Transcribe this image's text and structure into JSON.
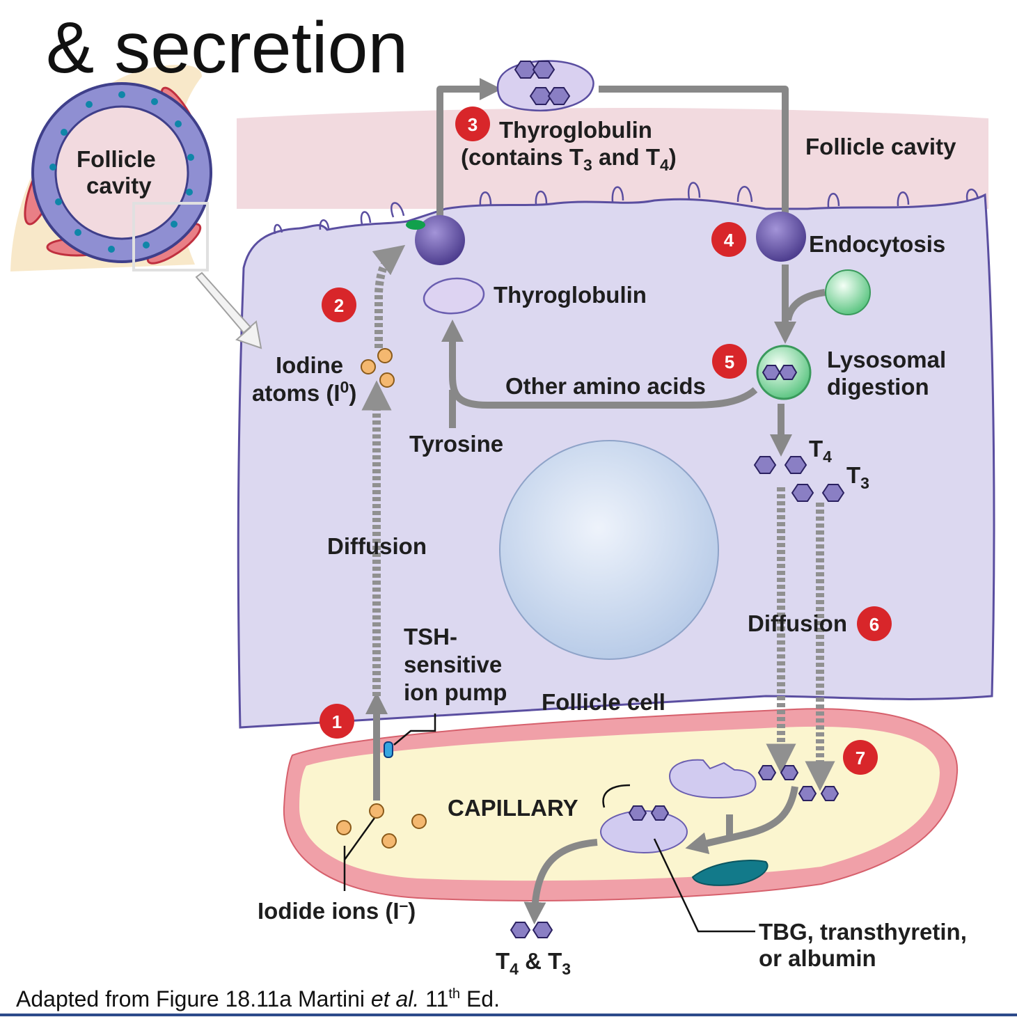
{
  "title": "& secretion",
  "caption": {
    "prefix": "Adapted from Figure 18.11a Martini ",
    "italic": "et al.",
    "mid": " 11",
    "sup": "th",
    "suffix": " Ed."
  },
  "inset": {
    "label_line1": "Follicle",
    "label_line2": "cavity"
  },
  "labels": {
    "follicle_cavity": "Follicle cavity",
    "thyroglobulin_top": "Thyroglobulin",
    "contains_pre": "(contains T",
    "contains_sub1": "3",
    "contains_mid": " and T",
    "contains_sub2": "4",
    "contains_post": ")",
    "endocytosis": "Endocytosis",
    "thyroglobulin_mid": "Thyroglobulin",
    "iodine_line1": "Iodine",
    "iodine_line2_pre": "atoms (I",
    "iodine_sup": "0",
    "iodine_line2_post": ")",
    "lysosomal_line1": "Lysosomal",
    "lysosomal_line2": "digestion",
    "other_amino_acids": "Other amino acids",
    "tyrosine": "Tyrosine",
    "t4": "T",
    "t4_sub": "4",
    "t3": "T",
    "t3_sub": "3",
    "diffusion_left": "Diffusion",
    "diffusion_right": "Diffusion",
    "tsh_line1": "TSH-",
    "tsh_line2": "sensitive",
    "tsh_line3": "ion pump",
    "follicle_cell": "Follicle cell",
    "capillary": "CAPILLARY",
    "iodide_pre": "Iodide ions (I",
    "iodide_sup": "–",
    "iodide_post": ")",
    "t4t3_pre": "T",
    "t4t3_sub1": "4",
    "t4t3_mid": " & T",
    "t4t3_sub2": "3",
    "tbg_line1": "TBG, transthyretin,",
    "tbg_line2": "or albumin"
  },
  "steps": [
    "1",
    "2",
    "3",
    "4",
    "5",
    "6",
    "7"
  ],
  "colors": {
    "cell_fill": "#dcd8f0",
    "cavity_fill": "#f2dadf",
    "capillary_wall": "#f0a0a8",
    "capillary_fill": "#fbf5cf",
    "arrow": "#888888",
    "step_badge": "#d8262a",
    "iodine_dot": "#f4b870",
    "hormone_hex": "#8a7fc4"
  }
}
